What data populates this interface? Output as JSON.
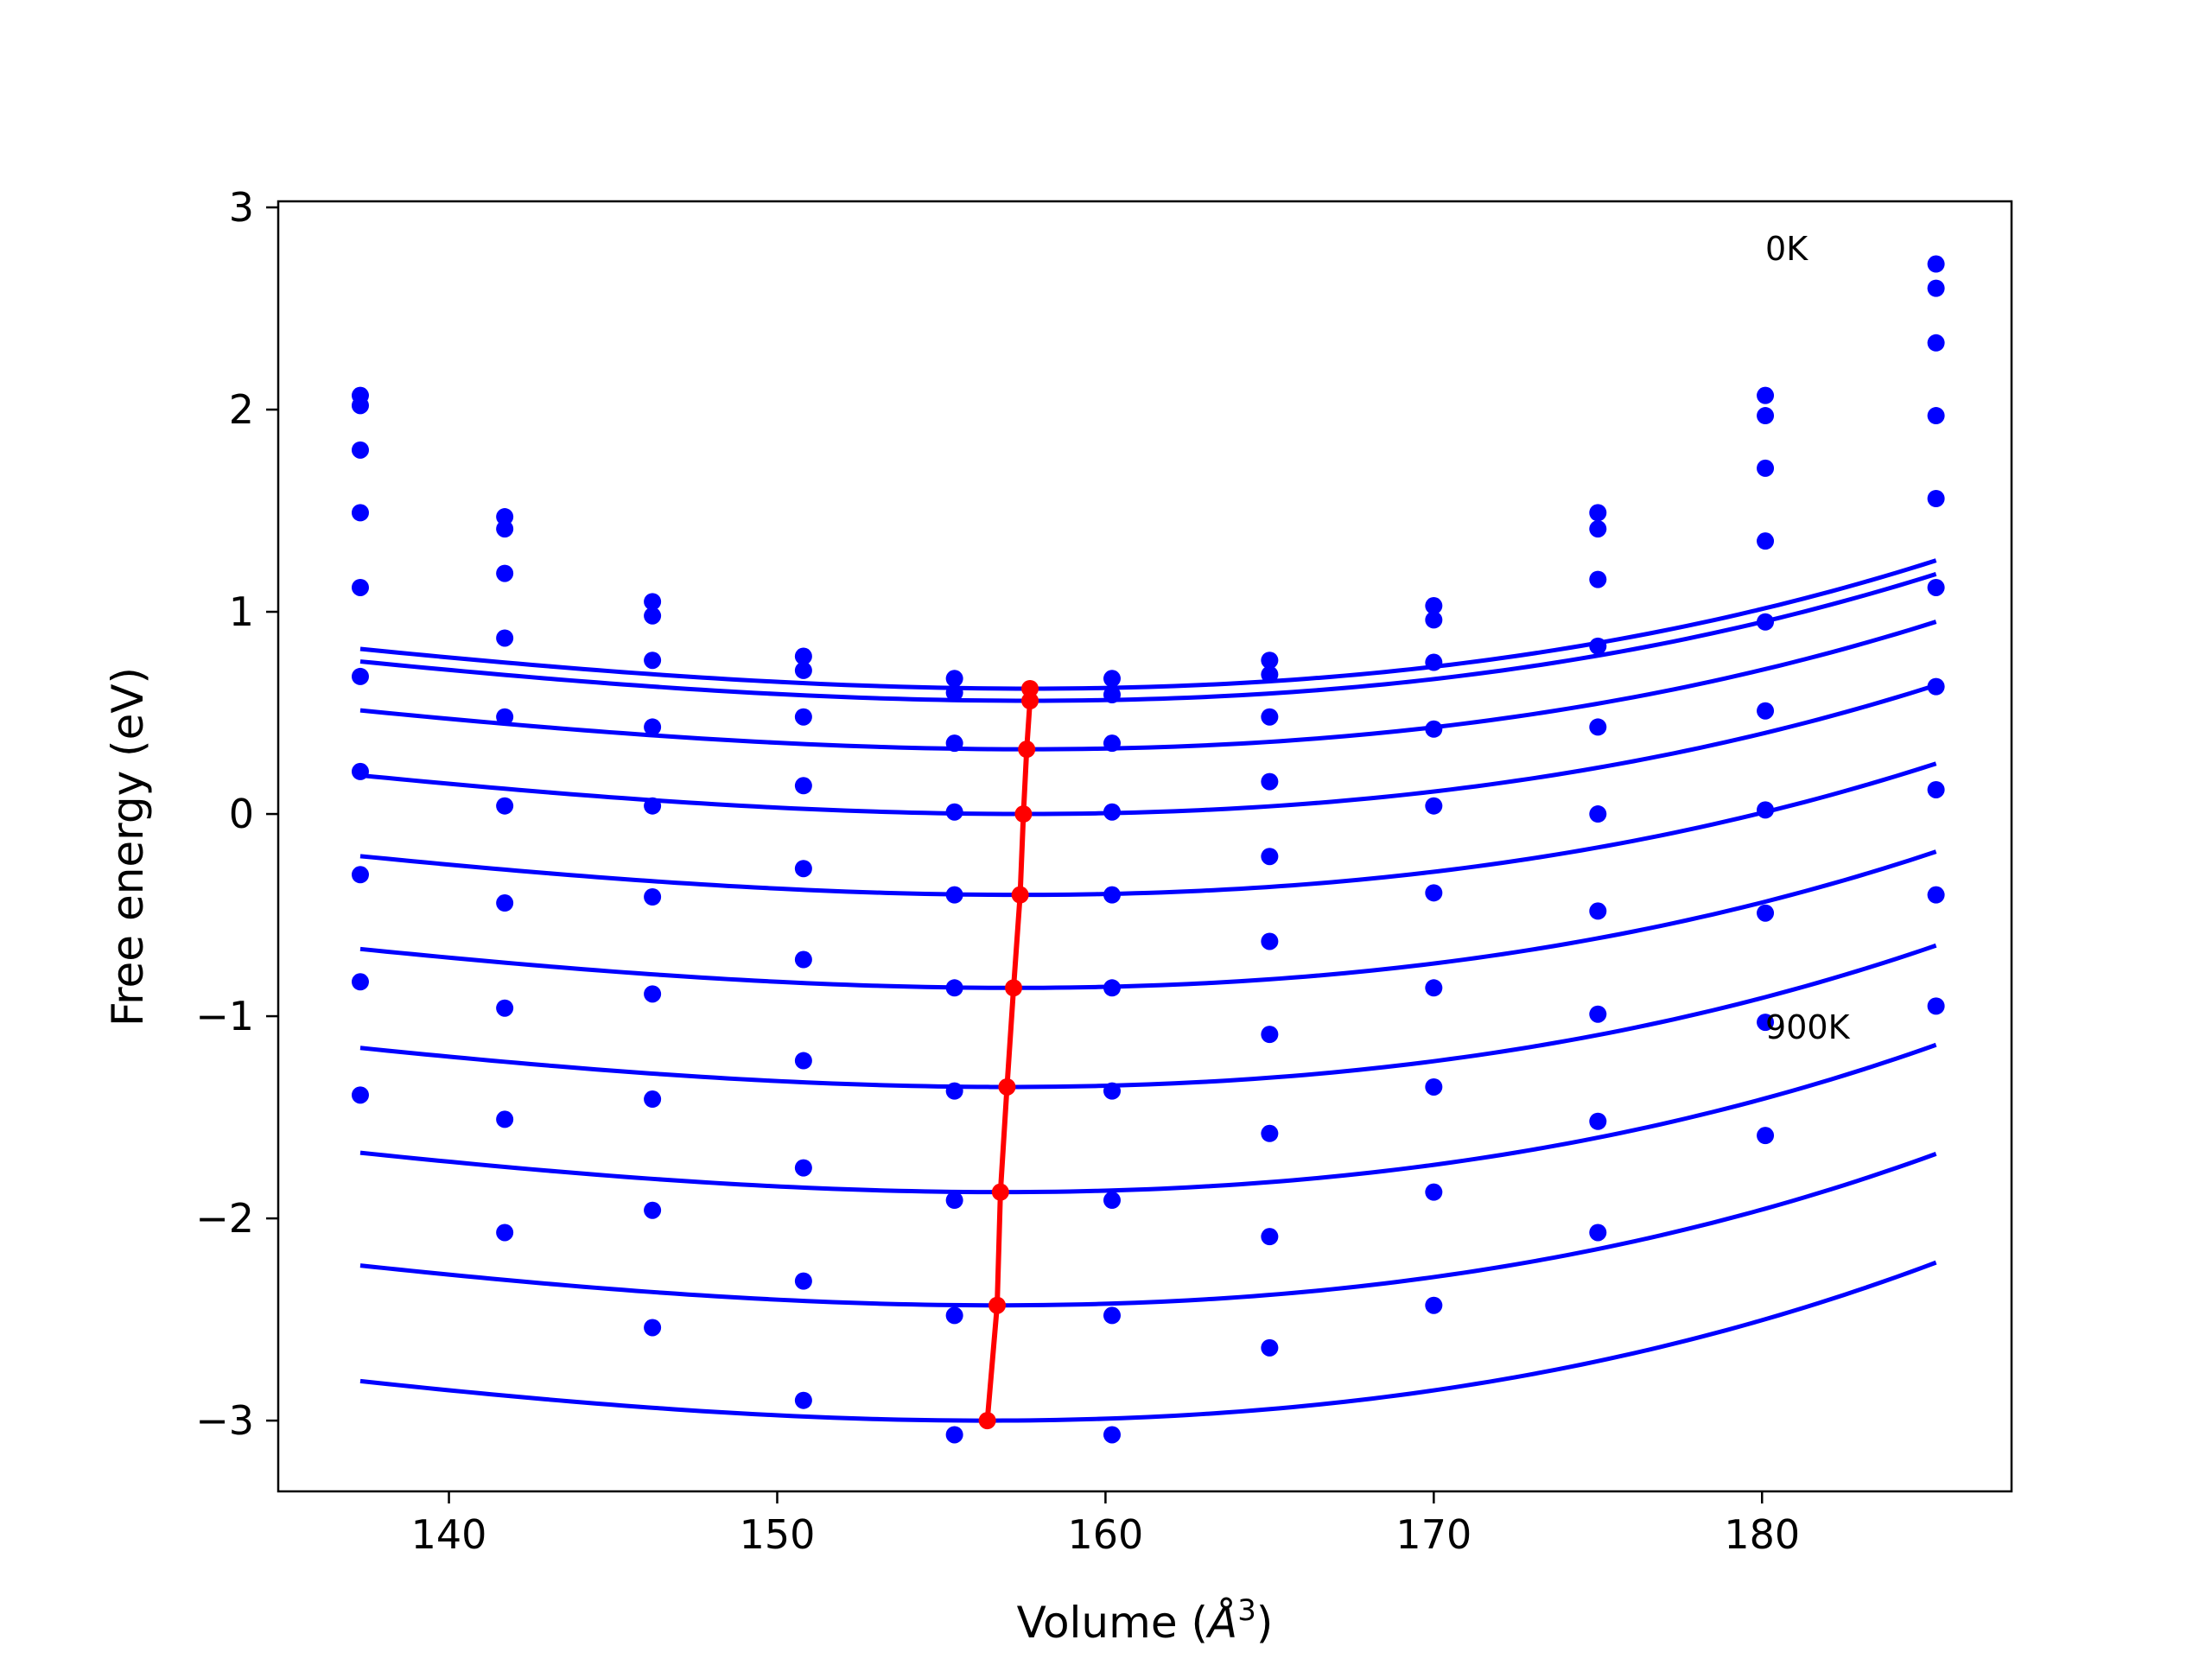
{
  "chart_data": {
    "type": "line",
    "title": "",
    "xlabel": "Volume (",
    "xlabel_unit": "Å",
    "xlabel_unit_exp": "3",
    "xlabel_close": ")",
    "ylabel": "Free energy (eV)",
    "xlim": [
      134.8,
      187.6
    ],
    "ylim": [
      -3.35,
      3.03
    ],
    "xticks": [
      140,
      150,
      160,
      170,
      180
    ],
    "xtick_labels": [
      "140",
      "150",
      "160",
      "170",
      "180"
    ],
    "yticks": [
      3,
      2,
      1,
      0,
      -1,
      -2,
      -3
    ],
    "ytick_labels": [
      "3",
      "2",
      "1",
      "0",
      "−1",
      "−2",
      "−3"
    ],
    "grid": false,
    "legend": "none",
    "colors": {
      "fit": "#0000ff",
      "points": "#0000ff",
      "minimum": "#ff0000",
      "axes": "#000000"
    },
    "annotations": [
      {
        "text": "0K",
        "x": 180.1,
        "y": 2.8
      },
      {
        "text": "900K",
        "x": 180.1,
        "y": -1.05
      }
    ],
    "volumes": [
      137.3,
      141.7,
      146.2,
      150.8,
      155.4,
      160.2,
      165.0,
      170.0,
      175.0,
      180.1,
      185.3
    ],
    "series": [
      {
        "points": [
          2.07,
          1.47,
          1.05,
          0.78,
          0.67,
          0.67,
          0.76,
          1.03,
          1.49,
          2.07,
          2.72
        ],
        "fit": {
          "v0": 157.7,
          "e0": 0.62,
          "a": 0.000625
        }
      },
      {
        "points": [
          2.02,
          1.41,
          0.98,
          0.71,
          0.6,
          0.59,
          0.69,
          0.96,
          1.41,
          1.97,
          2.6
        ],
        "fit": {
          "v0": 157.7,
          "e0": 0.56,
          "a": 0.000618
        }
      },
      {
        "points": [
          1.8,
          1.19,
          0.76,
          0.48,
          0.35,
          0.35,
          0.48,
          0.75,
          1.16,
          1.71,
          2.33
        ],
        "fit": {
          "v0": 157.6,
          "e0": 0.32,
          "a": 0.000617
        }
      },
      {
        "points": [
          1.49,
          0.87,
          0.43,
          0.14,
          0.01,
          0.01,
          0.16,
          0.42,
          0.83,
          1.35,
          1.97
        ],
        "fit": {
          "v0": 157.5,
          "e0": 0.0,
          "a": 0.000618
        }
      },
      {
        "points": [
          1.12,
          0.48,
          0.04,
          -0.27,
          -0.4,
          -0.4,
          -0.21,
          0.04,
          0.43,
          0.95,
          1.56
        ],
        "fit": {
          "v0": 157.4,
          "e0": -0.4,
          "a": 0.000625
        }
      },
      {
        "points": [
          0.68,
          0.04,
          -0.41,
          -0.72,
          -0.86,
          -0.86,
          -0.63,
          -0.39,
          0.0,
          0.51,
          1.12
        ],
        "fit": {
          "v0": 157.2,
          "e0": -0.86,
          "a": 0.000638
        }
      },
      {
        "points": [
          0.21,
          -0.44,
          -0.89,
          -1.22,
          -1.37,
          -1.37,
          -1.09,
          -0.86,
          -0.48,
          0.02,
          0.63
        ],
        "fit": {
          "v0": 157.0,
          "e0": -1.35,
          "a": 0.000652
        }
      },
      {
        "points": [
          -0.3,
          -0.96,
          -1.41,
          -1.75,
          -1.91,
          -1.91,
          -1.58,
          -1.35,
          -0.99,
          -0.49,
          0.12
        ],
        "fit": {
          "v0": 156.8,
          "e0": -1.87,
          "a": 0.000668
        }
      },
      {
        "points": [
          -0.83,
          -1.51,
          -1.96,
          -2.31,
          -2.48,
          -2.48,
          -2.09,
          -1.87,
          -1.52,
          -1.03,
          -0.4
        ],
        "fit": {
          "v0": 156.7,
          "e0": -2.43,
          "a": 0.000682
        }
      },
      {
        "points": [
          -1.39,
          -2.07,
          -2.54,
          -2.9,
          -3.07,
          -3.07,
          -2.64,
          -2.43,
          -2.07,
          -1.59,
          -0.95
        ],
        "fit": {
          "v0": 156.4,
          "e0": -3.0,
          "a": 0.000695
        }
      }
    ],
    "minimum_path": {
      "x": [
        157.7,
        157.7,
        157.6,
        157.5,
        157.4,
        157.2,
        157.0,
        156.8,
        156.7,
        156.4
      ],
      "y": [
        0.62,
        0.56,
        0.32,
        0.0,
        -0.4,
        -0.86,
        -1.35,
        -1.87,
        -2.43,
        -3.0
      ]
    }
  }
}
